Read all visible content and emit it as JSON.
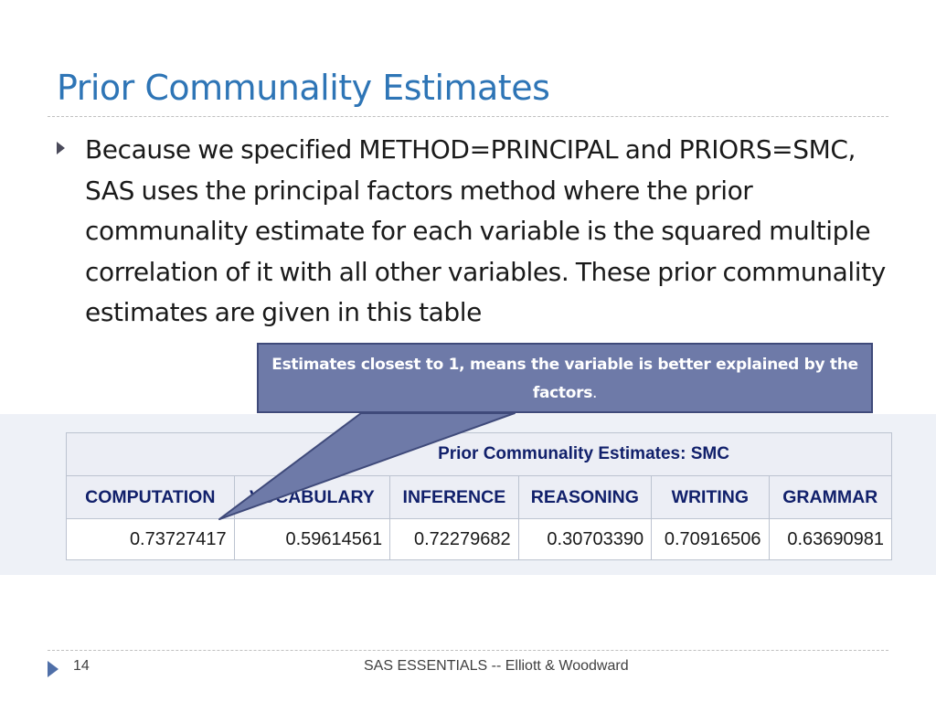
{
  "slide": {
    "title": "Prior Communality Estimates",
    "bullet_text": "Because we specified METHOD=PRINCIPAL and PRIORS=SMC, SAS uses the principal factors method where the prior communality estimate for each variable is the squared multiple correlation of it with all other variables. These prior communality estimates are given  in this table",
    "callout": {
      "text_bold": "Estimates closest to 1, means the variable is better explained by the factors",
      "text_end": "."
    },
    "colors": {
      "title": "#2e75b6",
      "callout_fill": "#6e7aa8",
      "table_header_text": "#11206b"
    }
  },
  "table": {
    "caption": "Prior Communality Estimates: SMC",
    "headers": [
      "COMPUTATION",
      "VOCABULARY",
      "INFERENCE",
      "REASONING",
      "WRITING",
      "GRAMMAR"
    ],
    "values": [
      "0.73727417",
      "0.59614561",
      "0.72279682",
      "0.30703390",
      "0.70916506",
      "0.63690981"
    ]
  },
  "footer": {
    "page_number": "14",
    "text": "SAS ESSENTIALS -- Elliott & Woodward"
  }
}
